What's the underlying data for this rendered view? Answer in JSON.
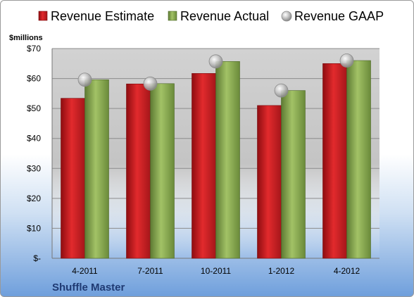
{
  "chart_data": {
    "type": "bar",
    "title": "",
    "xlabel": "",
    "ylabel": "",
    "unit_label": "$millions",
    "company_label": "Shuffle Master",
    "categories": [
      "4-2011",
      "7-2011",
      "10-2011",
      "1-2012",
      "4-2012"
    ],
    "series": [
      {
        "name": "Revenue Estimate",
        "kind": "bar",
        "color": "#d01e22",
        "values": [
          53.4,
          58.2,
          61.7,
          51.0,
          65.0
        ]
      },
      {
        "name": "Revenue Actual",
        "kind": "bar",
        "color": "#8cad52",
        "values": [
          59.6,
          58.3,
          65.7,
          56.0,
          66.0
        ]
      },
      {
        "name": "Revenue GAAP",
        "kind": "marker",
        "color": "#b5b5b5",
        "values": [
          59.6,
          58.3,
          65.7,
          56.0,
          66.0
        ]
      }
    ],
    "ylim": [
      0,
      70
    ],
    "yticks": [
      0,
      10,
      20,
      30,
      40,
      50,
      60,
      70
    ],
    "ytick_labels": [
      "$-",
      "$10",
      "$20",
      "$30",
      "$40",
      "$50",
      "$60",
      "$70"
    ],
    "grid": true,
    "legend_position": "top"
  }
}
